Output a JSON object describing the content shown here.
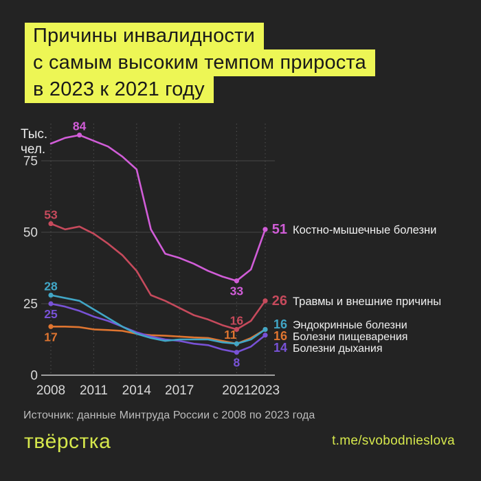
{
  "title": {
    "lines": [
      "Причины инвалидности",
      "с самым высоким темпом прироста",
      "в 2023 к 2021 году"
    ]
  },
  "colors": {
    "background": "#232323",
    "highlight_yellow": "#edf655",
    "footer_yellow": "#d6e84c",
    "grid": "#474747",
    "axis": "#c9c9c9",
    "tick_text": "#d9d9d9",
    "legend_text": "#f0f0f0"
  },
  "chart_data": {
    "type": "line",
    "unit_label_lines": [
      "Тыс.",
      "чел."
    ],
    "x": [
      2008,
      2009,
      2010,
      2011,
      2012,
      2013,
      2014,
      2015,
      2016,
      2017,
      2018,
      2019,
      2020,
      2021,
      2022,
      2023
    ],
    "x_ticks": [
      "2008",
      "2011",
      "2014",
      "2017",
      "2021",
      "2023"
    ],
    "x_tick_years": [
      2008,
      2011,
      2014,
      2017,
      2021,
      2023
    ],
    "y_ticks": [
      0,
      25,
      50,
      75
    ],
    "ylim": [
      0,
      90
    ],
    "grid": "on",
    "legend_position": "right",
    "series": [
      {
        "id": "injuries",
        "name": "Травмы и внешние причины",
        "color": "#c64a5c",
        "end_value": "26",
        "values": [
          53,
          51,
          52,
          49.5,
          46,
          42,
          36.5,
          28,
          26,
          23.5,
          21,
          19.5,
          17.5,
          16,
          19,
          26
        ],
        "markers": [
          2008,
          2021,
          2023
        ],
        "labels": [
          {
            "year": 2008,
            "text": "53",
            "pos": "above"
          },
          {
            "year": 2021,
            "text": "16",
            "pos": "above"
          }
        ]
      },
      {
        "id": "digestive",
        "name": "Болезни пищеварения",
        "color": "#df7530",
        "end_value": "16",
        "values": [
          17,
          17,
          16.8,
          16,
          15.8,
          15.5,
          14.5,
          14,
          13.8,
          13.5,
          13.2,
          13,
          12,
          11,
          13,
          16
        ],
        "markers": [
          2008,
          2021,
          2023
        ],
        "labels": [
          {
            "year": 2008,
            "text": "17",
            "pos": "below"
          },
          {
            "year": 2021,
            "text": "11",
            "pos": "above",
            "dx": -9
          }
        ]
      },
      {
        "id": "respiratory",
        "name": "Болезни дыхания",
        "color": "#7852d6",
        "end_value": "14",
        "values": [
          25,
          24,
          22.5,
          20.5,
          19,
          17,
          15,
          13.5,
          12.5,
          12,
          11,
          10.5,
          9,
          8,
          10,
          14
        ],
        "markers": [
          2008,
          2021,
          2023
        ],
        "labels": [
          {
            "year": 2008,
            "text": "25",
            "pos": "below"
          },
          {
            "year": 2021,
            "text": "8",
            "pos": "below"
          }
        ]
      },
      {
        "id": "endocrine",
        "name": "Эндокринные болезни",
        "color": "#41a6c6",
        "end_value": "16",
        "values": [
          28,
          27,
          26,
          23,
          20,
          17,
          14.5,
          13,
          12,
          12.5,
          12.5,
          12.5,
          11.5,
          11,
          12.5,
          16
        ],
        "markers": [
          2008,
          2021,
          2023
        ],
        "labels": [
          {
            "year": 2008,
            "text": "28",
            "pos": "above"
          }
        ]
      },
      {
        "id": "musculoskeletal",
        "name": "Костно-мышечные болезни",
        "color": "#d15dd8",
        "end_value": "51",
        "values": [
          81,
          83,
          84,
          82,
          80,
          76.5,
          72,
          51,
          42.5,
          41,
          39,
          36.5,
          34.5,
          33,
          37,
          51
        ],
        "markers": [
          2010,
          2021,
          2023
        ],
        "labels": [
          {
            "year": 2010,
            "text": "84",
            "pos": "above"
          },
          {
            "year": 2021,
            "text": "33",
            "pos": "below"
          }
        ]
      }
    ]
  },
  "source_note": "Источник: данные Минтруда России с 2008 по 2023 года",
  "footer": {
    "logo_text": "твёрстка",
    "channel_link": "t.me/svobodnieslova"
  }
}
